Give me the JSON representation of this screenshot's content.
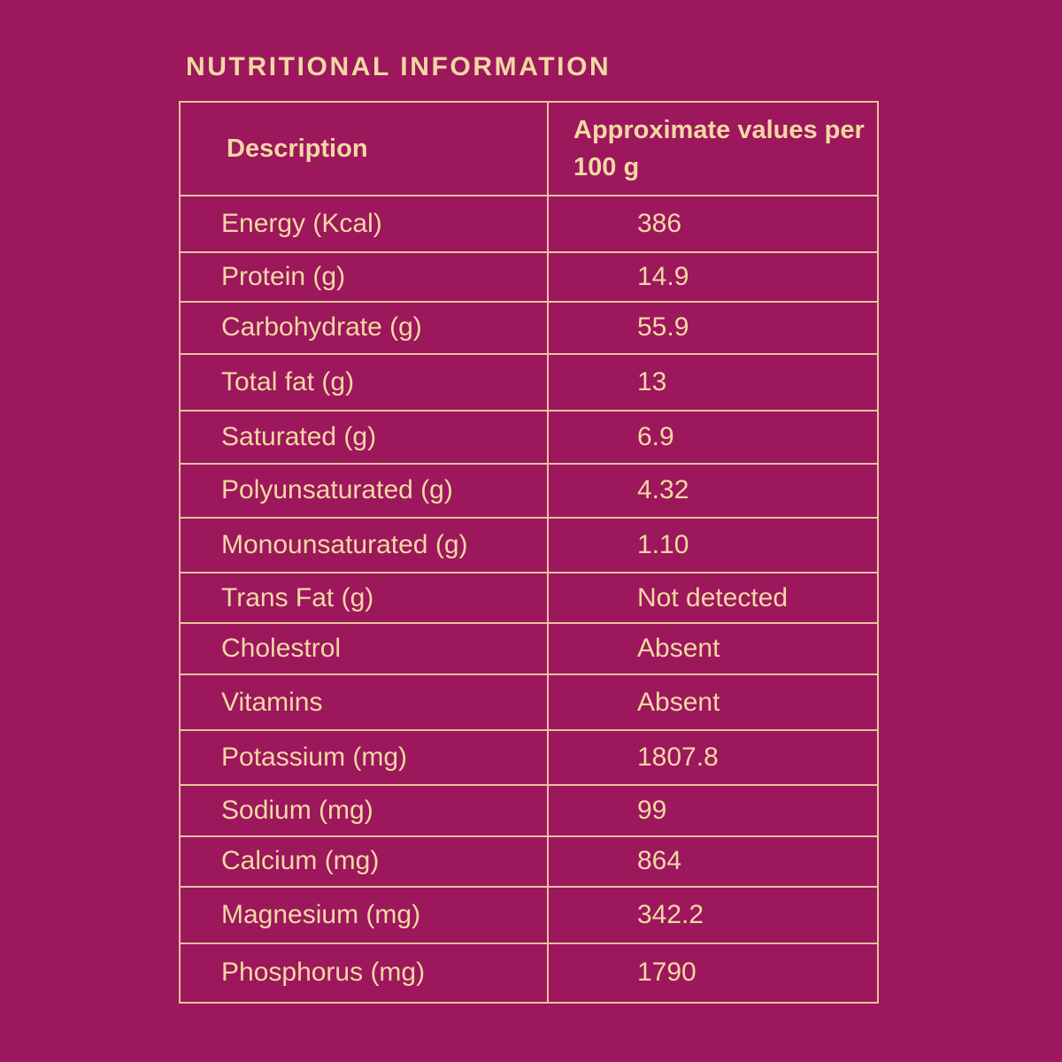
{
  "title": "NUTRITIONAL INFORMATION",
  "table": {
    "header": {
      "description": "Description",
      "values": "Approximate values per 100 g"
    },
    "rows": [
      {
        "nutrient": "Energy (Kcal)",
        "value": "386"
      },
      {
        "nutrient": "Protein (g)",
        "value": "14.9"
      },
      {
        "nutrient": "Carbohydrate (g)",
        "value": "55.9"
      },
      {
        "nutrient": "Total fat (g)",
        "value": "13"
      },
      {
        "nutrient": "Saturated (g)",
        "value": "6.9"
      },
      {
        "nutrient": "Polyunsaturated (g)",
        "value": "4.32"
      },
      {
        "nutrient": "Monounsaturated (g)",
        "value": "1.10"
      },
      {
        "nutrient": "Trans Fat (g)",
        "value": "Not detected"
      },
      {
        "nutrient": "Cholestrol",
        "value": "Absent"
      },
      {
        "nutrient": "Vitamins",
        "value": "Absent"
      },
      {
        "nutrient": "Potassium (mg)",
        "value": "1807.8"
      },
      {
        "nutrient": "Sodium (mg)",
        "value": "99"
      },
      {
        "nutrient": "Calcium (mg)",
        "value": "864"
      },
      {
        "nutrient": "Magnesium (mg)",
        "value": "342.2"
      },
      {
        "nutrient": "Phosphorus (mg)",
        "value": "1790"
      }
    ]
  },
  "colors": {
    "background": "#9c175c",
    "text": "#f3d7a3",
    "border": "#e9c39a"
  }
}
